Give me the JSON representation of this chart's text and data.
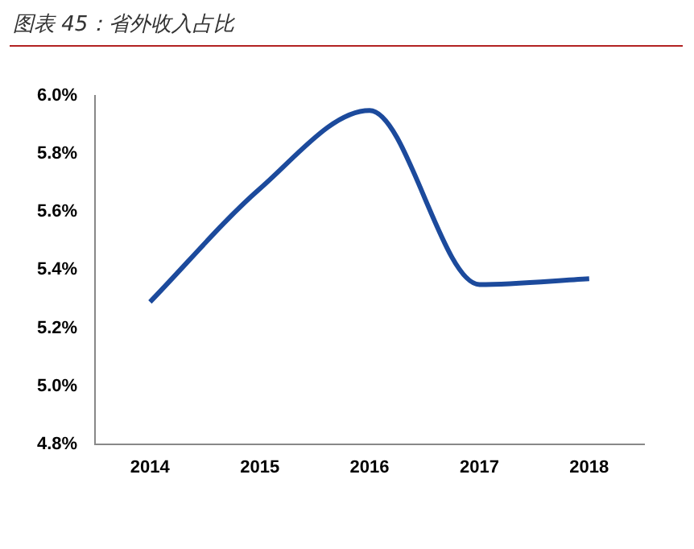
{
  "chart_data": {
    "type": "line",
    "title": "图表 45：省外收入占比",
    "categories": [
      "2014",
      "2015",
      "2016",
      "2017",
      "2018"
    ],
    "series": [
      {
        "color": "#1c4a9c",
        "values": [
          5.29,
          5.68,
          5.95,
          5.35,
          5.37
        ]
      }
    ],
    "ylim": [
      4.8,
      6.0
    ],
    "yticks": [
      {
        "value": 4.8,
        "label": "4.8%"
      },
      {
        "value": 5.0,
        "label": "5.0%"
      },
      {
        "value": 5.2,
        "label": "5.2%"
      },
      {
        "value": 5.4,
        "label": "5.4%"
      },
      {
        "value": 5.6,
        "label": "5.6%"
      },
      {
        "value": 5.8,
        "label": "5.8%"
      },
      {
        "value": 6.0,
        "label": "6.0%"
      }
    ],
    "grid": false,
    "legend": false,
    "marker": "none",
    "line_style": "solid"
  }
}
